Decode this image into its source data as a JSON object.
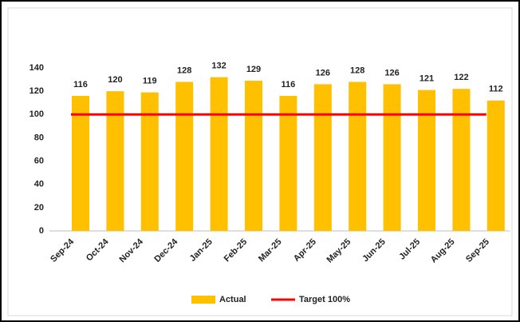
{
  "chart_data": {
    "type": "bar",
    "categories": [
      "Sep-24",
      "Oct-24",
      "Nov-24",
      "Dec-24",
      "Jan-25",
      "Feb-25",
      "Mar-25",
      "Apr-25",
      "May-25",
      "Jun-25",
      "Jul-25",
      "Aug-25",
      "Sep-25"
    ],
    "series": [
      {
        "name": "Actual",
        "type": "bar",
        "color": "#ffc000",
        "values": [
          116,
          120,
          119,
          128,
          132,
          129,
          116,
          126,
          128,
          126,
          121,
          122,
          112
        ]
      },
      {
        "name": "Target 100%",
        "type": "line",
        "color": "#ff0000",
        "values": [
          100,
          100,
          100,
          100,
          100,
          100,
          100,
          100,
          100,
          100,
          100,
          100,
          100
        ]
      }
    ],
    "ylim": [
      0,
      140
    ],
    "yticks": [
      0,
      20,
      40,
      60,
      80,
      100,
      120,
      140
    ],
    "grid": false,
    "legend": "bottom"
  }
}
